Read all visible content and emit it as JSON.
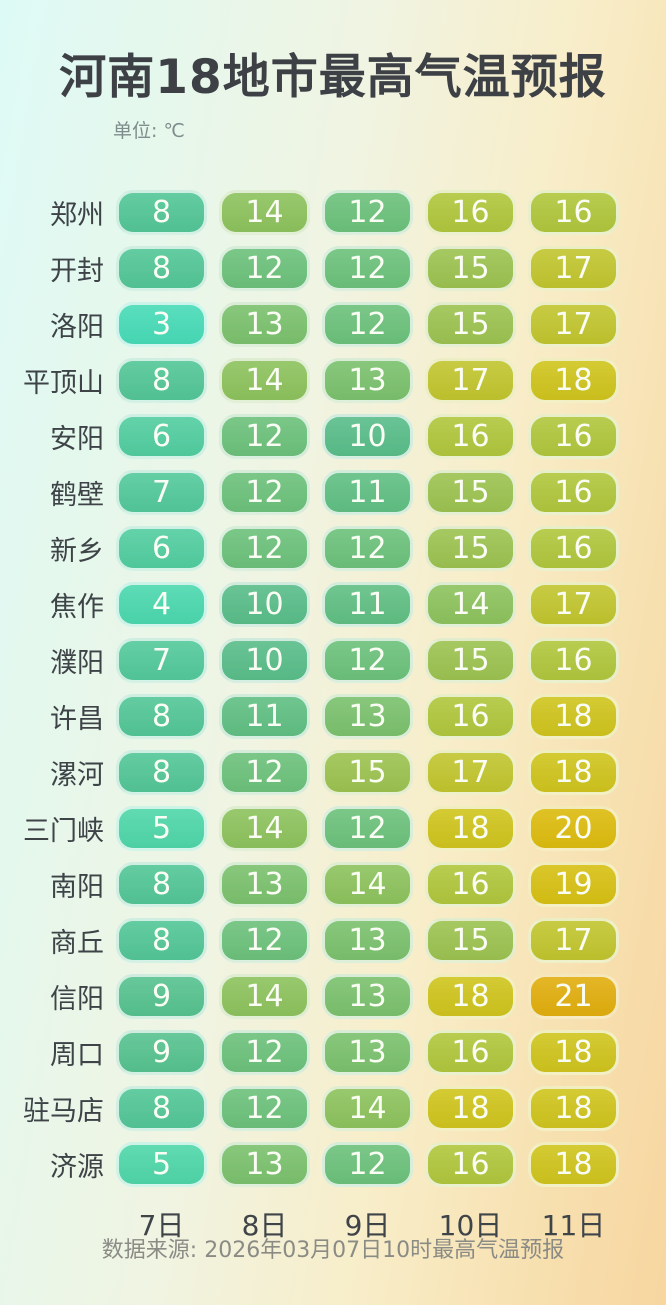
{
  "title": "河南18地市最高气温预报",
  "unit_label": "单位: ℃",
  "footer": "数据来源: 2026年03月07日10时最高气温预报",
  "chart_data": {
    "type": "heatmap",
    "title": "河南18地市最高气温预报",
    "unit": "℃",
    "columns": [
      "7日",
      "8日",
      "9日",
      "10日",
      "11日"
    ],
    "rows": [
      {
        "city": "郑州",
        "values": [
          8,
          14,
          12,
          16,
          16
        ]
      },
      {
        "city": "开封",
        "values": [
          8,
          12,
          12,
          15,
          17
        ]
      },
      {
        "city": "洛阳",
        "values": [
          3,
          13,
          12,
          15,
          17
        ]
      },
      {
        "city": "平顶山",
        "values": [
          8,
          14,
          13,
          17,
          18
        ]
      },
      {
        "city": "安阳",
        "values": [
          6,
          12,
          10,
          16,
          16
        ]
      },
      {
        "city": "鹤壁",
        "values": [
          7,
          12,
          11,
          15,
          16
        ]
      },
      {
        "city": "新乡",
        "values": [
          6,
          12,
          12,
          15,
          16
        ]
      },
      {
        "city": "焦作",
        "values": [
          4,
          10,
          11,
          14,
          17
        ]
      },
      {
        "city": "濮阳",
        "values": [
          7,
          10,
          12,
          15,
          16
        ]
      },
      {
        "city": "许昌",
        "values": [
          8,
          11,
          13,
          16,
          18
        ]
      },
      {
        "city": "漯河",
        "values": [
          8,
          12,
          15,
          17,
          18
        ]
      },
      {
        "city": "三门峡",
        "values": [
          5,
          14,
          12,
          18,
          20
        ]
      },
      {
        "city": "南阳",
        "values": [
          8,
          13,
          14,
          16,
          19
        ]
      },
      {
        "city": "商丘",
        "values": [
          8,
          12,
          13,
          15,
          17
        ]
      },
      {
        "city": "信阳",
        "values": [
          9,
          14,
          13,
          18,
          21
        ]
      },
      {
        "city": "周口",
        "values": [
          9,
          12,
          13,
          16,
          18
        ]
      },
      {
        "city": "驻马店",
        "values": [
          8,
          12,
          14,
          18,
          18
        ]
      },
      {
        "city": "济源",
        "values": [
          5,
          13,
          12,
          16,
          18
        ]
      }
    ],
    "value_range": [
      3,
      21
    ],
    "temp_colors": {
      "3": "#47dbb7",
      "4": "#4bd8ae",
      "5": "#4fd6a9",
      "6": "#52cda0",
      "7": "#53c99b",
      "8": "#53c697",
      "9": "#56c28f",
      "10": "#59bd89",
      "11": "#60bf83",
      "12": "#6cc17b",
      "13": "#7bc16d",
      "14": "#8dc25d",
      "15": "#9cc250",
      "16": "#b0c63c",
      "17": "#c1c52e",
      "18": "#cfc41d",
      "19": "#d7c013",
      "20": "#dcbb0e",
      "21": "#e1ae0e"
    },
    "cell_text_color": "#fafdf3",
    "legend_position": "none",
    "grid": false
  }
}
